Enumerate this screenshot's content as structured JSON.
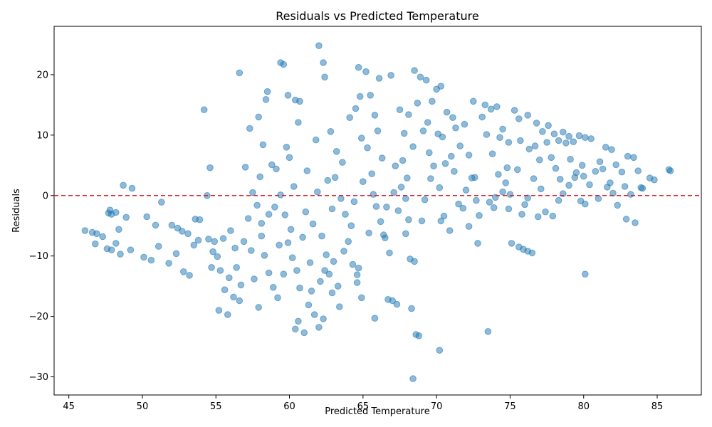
{
  "chart_data": {
    "type": "scatter",
    "title": "Residuals vs Predicted Temperature",
    "xlabel": "Predicted Temperature",
    "ylabel": "Residuals",
    "xlim": [
      44.0,
      88.0
    ],
    "ylim": [
      -33.0,
      28.0
    ],
    "x_ticks": [
      45,
      50,
      55,
      60,
      65,
      70,
      75,
      80,
      85
    ],
    "y_ticks": [
      -30,
      -20,
      -10,
      0,
      10,
      20
    ],
    "grid": false,
    "reference_line": {
      "y": 0,
      "color": "#d62728",
      "style": "dashed"
    },
    "point_color": "#1f77b4",
    "points": [
      [
        46.1,
        -5.8
      ],
      [
        46.6,
        -6.1
      ],
      [
        46.9,
        -6.3
      ],
      [
        47.3,
        -6.8
      ],
      [
        47.6,
        -8.8
      ],
      [
        47.9,
        -9.0
      ],
      [
        48.2,
        -7.9
      ],
      [
        48.5,
        -9.7
      ],
      [
        46.8,
        -8.0
      ],
      [
        47.7,
        -2.9
      ],
      [
        47.9,
        -3.1
      ],
      [
        48.2,
        -2.8
      ],
      [
        48.7,
        1.7
      ],
      [
        49.3,
        1.2
      ],
      [
        47.8,
        -2.4
      ],
      [
        48.4,
        -5.6
      ],
      [
        48.9,
        -3.6
      ],
      [
        49.2,
        -9.0
      ],
      [
        50.1,
        -10.2
      ],
      [
        50.6,
        -10.7
      ],
      [
        50.9,
        -4.9
      ],
      [
        51.3,
        -1.1
      ],
      [
        51.8,
        -11.2
      ],
      [
        52.3,
        -9.6
      ],
      [
        52.8,
        -12.6
      ],
      [
        53.2,
        -13.2
      ],
      [
        53.5,
        -8.2
      ],
      [
        53.9,
        -4.0
      ],
      [
        50.3,
        -3.5
      ],
      [
        51.1,
        -8.4
      ],
      [
        52.0,
        -4.9
      ],
      [
        52.7,
        -5.9
      ],
      [
        53.6,
        -3.9
      ],
      [
        54.2,
        14.2
      ],
      [
        54.6,
        4.6
      ],
      [
        54.4,
        0.0
      ],
      [
        54.8,
        -9.3
      ],
      [
        55.1,
        -10.1
      ],
      [
        55.3,
        -12.4
      ],
      [
        55.6,
        -15.6
      ],
      [
        55.2,
        -19.0
      ],
      [
        55.8,
        -19.7
      ],
      [
        54.5,
        -7.2
      ],
      [
        54.9,
        -7.6
      ],
      [
        56.0,
        -5.8
      ],
      [
        56.3,
        -8.7
      ],
      [
        56.4,
        -11.9
      ],
      [
        56.7,
        -14.8
      ],
      [
        56.2,
        -16.8
      ],
      [
        56.6,
        -17.4
      ],
      [
        56.6,
        20.3
      ],
      [
        57.3,
        11.1
      ],
      [
        57.9,
        13.0
      ],
      [
        58.2,
        8.4
      ],
      [
        58.4,
        15.9
      ],
      [
        58.5,
        17.2
      ],
      [
        57.5,
        0.5
      ],
      [
        57.8,
        -1.6
      ],
      [
        58.1,
        -4.6
      ],
      [
        58.3,
        -9.9
      ],
      [
        58.6,
        -12.8
      ],
      [
        58.9,
        -15.2
      ],
      [
        59.2,
        -16.9
      ],
      [
        57.9,
        -18.5
      ],
      [
        59.4,
        22.0
      ],
      [
        59.6,
        21.7
      ],
      [
        59.9,
        16.6
      ],
      [
        60.4,
        15.8
      ],
      [
        60.6,
        12.1
      ],
      [
        60.7,
        15.6
      ],
      [
        59.1,
        4.4
      ],
      [
        59.4,
        0.1
      ],
      [
        59.7,
        -3.2
      ],
      [
        59.9,
        -7.8
      ],
      [
        60.2,
        -10.3
      ],
      [
        60.5,
        -12.4
      ],
      [
        60.7,
        -15.3
      ],
      [
        60.4,
        -22.1
      ],
      [
        61.0,
        -22.7
      ],
      [
        60.6,
        -20.8
      ],
      [
        61.3,
        -18.1
      ],
      [
        61.7,
        -19.7
      ],
      [
        62.0,
        -21.8
      ],
      [
        62.3,
        -20.4
      ],
      [
        61.2,
        4.1
      ],
      [
        61.6,
        -4.7
      ],
      [
        61.9,
        0.6
      ],
      [
        62.2,
        -6.7
      ],
      [
        62.5,
        -9.8
      ],
      [
        62.7,
        -13.0
      ],
      [
        62.9,
        -16.1
      ],
      [
        62.3,
        22.0
      ],
      [
        62.0,
        24.8
      ],
      [
        62.4,
        19.6
      ],
      [
        62.8,
        10.6
      ],
      [
        63.2,
        7.3
      ],
      [
        63.5,
        -0.5
      ],
      [
        63.8,
        -3.1
      ],
      [
        64.0,
        -7.6
      ],
      [
        64.3,
        -11.4
      ],
      [
        64.6,
        -13.1
      ],
      [
        64.9,
        -16.9
      ],
      [
        63.4,
        -18.4
      ],
      [
        64.1,
        12.9
      ],
      [
        64.5,
        14.4
      ],
      [
        64.8,
        16.4
      ],
      [
        65.2,
        20.5
      ],
      [
        64.7,
        21.2
      ],
      [
        65.5,
        16.6
      ],
      [
        65.8,
        13.3
      ],
      [
        66.1,
        19.4
      ],
      [
        65.3,
        7.9
      ],
      [
        65.6,
        3.6
      ],
      [
        65.9,
        -1.8
      ],
      [
        66.2,
        -4.3
      ],
      [
        66.5,
        -7.0
      ],
      [
        66.8,
        -9.5
      ],
      [
        67.0,
        -17.4
      ],
      [
        66.7,
        -17.2
      ],
      [
        65.8,
        -20.3
      ],
      [
        67.3,
        -18.0
      ],
      [
        66.9,
        19.9
      ],
      [
        67.5,
        14.2
      ],
      [
        67.8,
        10.3
      ],
      [
        68.1,
        13.4
      ],
      [
        68.4,
        8.1
      ],
      [
        67.2,
        4.9
      ],
      [
        67.6,
        1.4
      ],
      [
        67.9,
        -0.5
      ],
      [
        68.2,
        -10.5
      ],
      [
        68.5,
        -10.9
      ],
      [
        68.3,
        -18.7
      ],
      [
        68.6,
        -23.0
      ],
      [
        68.8,
        -23.2
      ],
      [
        68.4,
        -30.3
      ],
      [
        68.5,
        20.7
      ],
      [
        68.9,
        19.6
      ],
      [
        69.3,
        19.1
      ],
      [
        69.7,
        15.6
      ],
      [
        70.0,
        17.6
      ],
      [
        69.1,
        10.7
      ],
      [
        69.5,
        7.1
      ],
      [
        69.8,
        4.9
      ],
      [
        70.2,
        1.3
      ],
      [
        70.5,
        -3.4
      ],
      [
        70.9,
        -5.8
      ],
      [
        70.3,
        -4.2
      ],
      [
        70.2,
        -25.6
      ],
      [
        70.3,
        18.1
      ],
      [
        70.7,
        13.8
      ],
      [
        71.1,
        12.9
      ],
      [
        71.3,
        11.2
      ],
      [
        71.6,
        8.2
      ],
      [
        71.9,
        11.8
      ],
      [
        72.2,
        6.7
      ],
      [
        72.4,
        2.9
      ],
      [
        72.7,
        -0.8
      ],
      [
        72.9,
        -3.3
      ],
      [
        72.2,
        -5.1
      ],
      [
        72.8,
        -7.9
      ],
      [
        73.5,
        -22.5
      ],
      [
        73.3,
        15.0
      ],
      [
        73.7,
        14.3
      ],
      [
        74.1,
        14.7
      ],
      [
        74.5,
        11.0
      ],
      [
        74.9,
        8.8
      ],
      [
        75.3,
        14.1
      ],
      [
        75.6,
        12.7
      ],
      [
        73.4,
        10.1
      ],
      [
        73.8,
        6.9
      ],
      [
        74.2,
        3.5
      ],
      [
        74.5,
        0.6
      ],
      [
        74.9,
        -2.2
      ],
      [
        75.1,
        -7.9
      ],
      [
        75.6,
        -8.5
      ],
      [
        75.9,
        -8.9
      ],
      [
        76.2,
        -9.2
      ],
      [
        76.5,
        -9.5
      ],
      [
        75.8,
        -3.1
      ],
      [
        76.2,
        -0.4
      ],
      [
        76.6,
        2.8
      ],
      [
        77.0,
        5.9
      ],
      [
        76.2,
        13.3
      ],
      [
        76.8,
        12.0
      ],
      [
        77.2,
        10.6
      ],
      [
        77.6,
        11.6
      ],
      [
        78.0,
        10.2
      ],
      [
        78.3,
        9.1
      ],
      [
        78.6,
        10.5
      ],
      [
        79.0,
        9.8
      ],
      [
        79.3,
        8.9
      ],
      [
        79.7,
        9.9
      ],
      [
        80.1,
        9.6
      ],
      [
        80.5,
        9.4
      ],
      [
        77.4,
        -2.7
      ],
      [
        77.9,
        -3.4
      ],
      [
        78.3,
        -0.8
      ],
      [
        78.6,
        0.3
      ],
      [
        79.0,
        1.7
      ],
      [
        79.4,
        3.0
      ],
      [
        79.8,
        -0.9
      ],
      [
        80.1,
        -1.4
      ],
      [
        80.1,
        -13.0
      ],
      [
        80.4,
        1.8
      ],
      [
        80.8,
        4.0
      ],
      [
        81.1,
        5.6
      ],
      [
        81.5,
        8.0
      ],
      [
        81.9,
        7.6
      ],
      [
        82.2,
        5.1
      ],
      [
        82.6,
        3.9
      ],
      [
        81.0,
        -0.5
      ],
      [
        81.8,
        2.1
      ],
      [
        82.3,
        -1.6
      ],
      [
        82.9,
        -3.9
      ],
      [
        83.5,
        -4.5
      ],
      [
        83.0,
        6.5
      ],
      [
        83.4,
        6.3
      ],
      [
        83.7,
        4.1
      ],
      [
        84.0,
        1.2
      ],
      [
        84.5,
        2.9
      ],
      [
        84.8,
        2.6
      ],
      [
        85.8,
        4.3
      ],
      [
        85.9,
        4.1
      ],
      [
        83.9,
        1.3
      ],
      [
        57.0,
        4.7
      ],
      [
        58.8,
        5.1
      ],
      [
        60.1,
        -5.6
      ],
      [
        61.4,
        -11.1
      ],
      [
        63.0,
        -10.9
      ],
      [
        64.2,
        -5.0
      ],
      [
        65.0,
        2.3
      ],
      [
        66.3,
        6.2
      ],
      [
        67.4,
        -2.5
      ],
      [
        68.0,
        2.9
      ],
      [
        69.0,
        -4.2
      ],
      [
        70.6,
        5.3
      ],
      [
        71.5,
        -1.4
      ],
      [
        72.6,
        3.0
      ],
      [
        73.9,
        -2.0
      ],
      [
        74.7,
        2.1
      ],
      [
        75.5,
        4.3
      ],
      [
        76.3,
        7.7
      ],
      [
        77.1,
        1.1
      ],
      [
        78.1,
        4.5
      ],
      [
        79.1,
        6.0
      ],
      [
        80.0,
        3.2
      ],
      [
        81.3,
        4.4
      ],
      [
        82.0,
        0.4
      ],
      [
        56.9,
        -7.6
      ],
      [
        57.6,
        -13.8
      ],
      [
        58.0,
        3.1
      ],
      [
        59.0,
        -1.9
      ],
      [
        60.0,
        6.3
      ],
      [
        61.1,
        -2.7
      ],
      [
        62.6,
        2.5
      ],
      [
        63.6,
        5.5
      ],
      [
        64.4,
        -1.0
      ],
      [
        65.4,
        -6.2
      ],
      [
        66.0,
        10.7
      ],
      [
        67.7,
        5.8
      ],
      [
        68.7,
        15.3
      ],
      [
        69.6,
        2.8
      ],
      [
        70.4,
        9.7
      ],
      [
        71.0,
        6.5
      ],
      [
        71.8,
        -2.1
      ],
      [
        72.5,
        15.6
      ],
      [
        73.1,
        13.0
      ],
      [
        74.0,
        -0.3
      ],
      [
        74.8,
        4.6
      ],
      [
        75.7,
        9.1
      ],
      [
        76.7,
        8.2
      ],
      [
        77.8,
        6.3
      ],
      [
        78.8,
        8.7
      ],
      [
        79.5,
        3.8
      ],
      [
        58.6,
        -3.1
      ],
      [
        59.3,
        -8.2
      ],
      [
        60.9,
        -6.9
      ],
      [
        62.1,
        -14.2
      ],
      [
        63.3,
        -15.0
      ],
      [
        64.7,
        -12.0
      ],
      [
        55.5,
        -7.1
      ],
      [
        57.2,
        -3.8
      ],
      [
        59.8,
        8.0
      ],
      [
        61.8,
        9.2
      ],
      [
        63.1,
        3.0
      ],
      [
        64.9,
        9.5
      ],
      [
        66.6,
        -1.9
      ],
      [
        67.1,
        0.5
      ],
      [
        69.4,
        12.1
      ],
      [
        70.1,
        10.2
      ],
      [
        71.2,
        4.0
      ],
      [
        72.0,
        0.9
      ],
      [
        73.6,
        -1.1
      ],
      [
        74.3,
        9.6
      ],
      [
        75.0,
        0.2
      ],
      [
        76.0,
        -1.5
      ],
      [
        76.9,
        -3.5
      ],
      [
        77.5,
        8.8
      ],
      [
        78.4,
        2.7
      ],
      [
        79.9,
        5.0
      ],
      [
        81.6,
        1.4
      ],
      [
        82.8,
        1.5
      ],
      [
        83.2,
        0.2
      ],
      [
        60.3,
        1.5
      ],
      [
        62.9,
        -2.2
      ],
      [
        65.7,
        0.2
      ],
      [
        67.9,
        -6.3
      ],
      [
        69.2,
        -0.7
      ],
      [
        52.4,
        -5.4
      ],
      [
        53.1,
        -6.3
      ],
      [
        54.7,
        -11.9
      ],
      [
        55.9,
        -13.6
      ],
      [
        57.4,
        -9.1
      ],
      [
        58.1,
        -6.7
      ],
      [
        59.6,
        -13.0
      ],
      [
        61.5,
        -15.8
      ],
      [
        62.4,
        -12.4
      ],
      [
        63.7,
        -9.2
      ],
      [
        64.6,
        -14.4
      ],
      [
        66.4,
        -6.5
      ],
      [
        68.1,
        -4.0
      ],
      [
        53.8,
        -7.4
      ]
    ]
  }
}
